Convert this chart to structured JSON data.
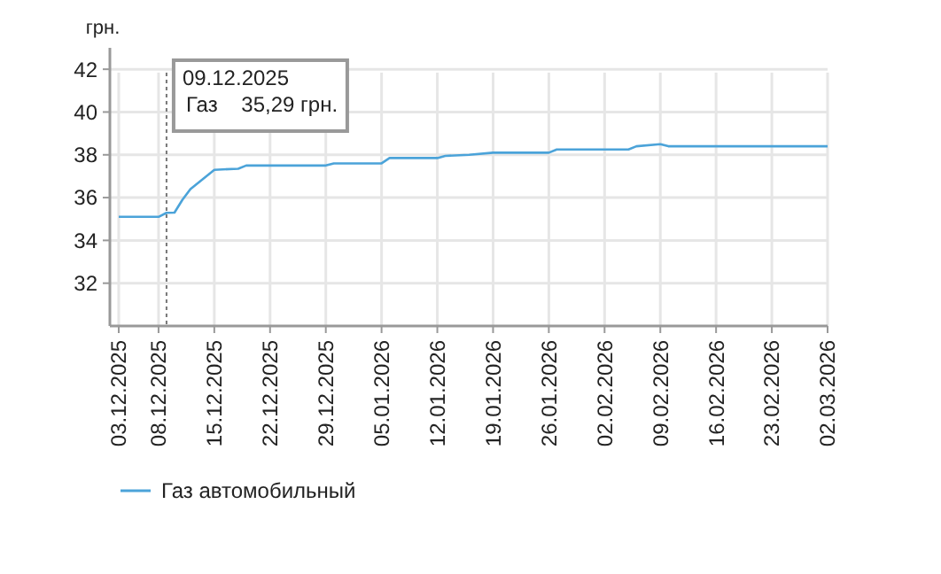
{
  "chart_data": {
    "type": "line",
    "ylabel": "грн.",
    "x": [
      "2025-12-03",
      "2025-12-08",
      "2025-12-09",
      "2025-12-10",
      "2025-12-11",
      "2025-12-12",
      "2025-12-15",
      "2025-12-18",
      "2025-12-19",
      "2025-12-29",
      "2025-12-30",
      "2026-01-05",
      "2026-01-06",
      "2026-01-12",
      "2026-01-13",
      "2026-01-16",
      "2026-01-19",
      "2026-01-26",
      "2026-01-27",
      "2026-02-05",
      "2026-02-06",
      "2026-02-09",
      "2026-02-10",
      "2026-03-02"
    ],
    "series": [
      {
        "name": "Газ автомобильный",
        "color": "#4ba3d9",
        "values": [
          35.1,
          35.1,
          35.29,
          35.3,
          35.9,
          36.4,
          37.3,
          37.35,
          37.5,
          37.5,
          37.6,
          37.6,
          37.85,
          37.85,
          37.95,
          38.0,
          38.1,
          38.1,
          38.25,
          38.25,
          38.4,
          38.5,
          38.4,
          38.4
        ]
      }
    ],
    "xlim": [
      "2025-12-03",
      "2026-03-02"
    ],
    "xticks": [
      {
        "value": "2025-12-03",
        "label": "03.12.2025"
      },
      {
        "value": "2025-12-08",
        "label": "08.12.2025"
      },
      {
        "value": "2025-12-15",
        "label": "15.12.2025"
      },
      {
        "value": "2025-12-22",
        "label": "22.12.2025"
      },
      {
        "value": "2025-12-29",
        "label": "29.12.2025"
      },
      {
        "value": "2026-01-05",
        "label": "05.01.2026"
      },
      {
        "value": "2026-01-12",
        "label": "12.01.2026"
      },
      {
        "value": "2026-01-19",
        "label": "19.01.2026"
      },
      {
        "value": "2026-01-26",
        "label": "26.01.2026"
      },
      {
        "value": "2026-02-02",
        "label": "02.02.2026"
      },
      {
        "value": "2026-02-09",
        "label": "09.02.2026"
      },
      {
        "value": "2026-02-16",
        "label": "16.02.2026"
      },
      {
        "value": "2026-02-23",
        "label": "23.02.2026"
      },
      {
        "value": "2026-03-02",
        "label": "02.03.2026"
      }
    ],
    "ylim": [
      30,
      43
    ],
    "yticks": [
      32,
      34,
      36,
      38,
      40,
      42
    ],
    "grid": true,
    "legend": "bottom left",
    "marker": "none",
    "line_style": "solid",
    "ref_lines": [
      {
        "axis": "x",
        "value": "2025-12-09",
        "line_style": "dotted",
        "color": "#777777"
      }
    ],
    "annotations": [
      "09.12.2025\nГаз    35,29 грн."
    ]
  }
}
